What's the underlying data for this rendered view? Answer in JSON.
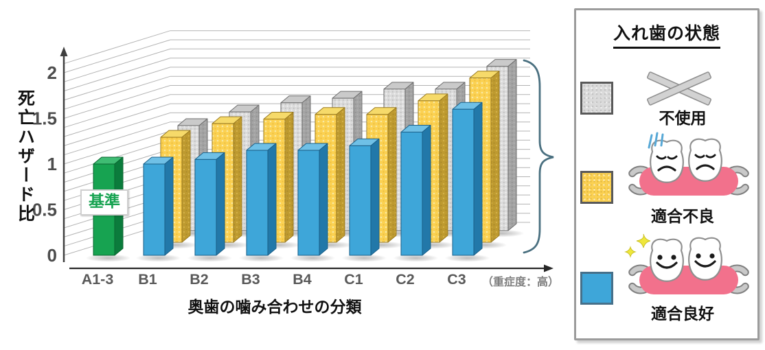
{
  "chart": {
    "y_axis": {
      "title": "死亡ハザード比",
      "tick_labels": [
        "0",
        "0.5",
        "1",
        "1.5",
        "2"
      ]
    },
    "x_axis": {
      "title": "奥歯の噛み合わせの分類",
      "severity_note": "（重症度：高）"
    },
    "reference_label": "基準"
  },
  "chart_data": {
    "type": "bar",
    "projection": "3d-oblique",
    "title": "",
    "xlabel": "奥歯の噛み合わせの分類",
    "ylabel": "死亡ハザード比",
    "ylim": [
      0,
      2.1
    ],
    "y_ticks": [
      0,
      0.5,
      1,
      1.5,
      2
    ],
    "grid": true,
    "legend_position": "right",
    "categories": [
      "A1-3",
      "B1",
      "B2",
      "B3",
      "B4",
      "C1",
      "C2",
      "C3"
    ],
    "series": [
      {
        "name": "基準（A1-3）",
        "color": "#17A351",
        "depth": 0,
        "values": [
          1.0,
          null,
          null,
          null,
          null,
          null,
          null,
          null
        ]
      },
      {
        "name": "適合良好",
        "color": "#3EA6D9",
        "depth": 0,
        "values": [
          null,
          1.0,
          1.05,
          1.15,
          1.15,
          1.2,
          1.35,
          1.6
        ]
      },
      {
        "name": "適合不良",
        "color": "#FBD152",
        "depth": 1,
        "values": [
          null,
          1.15,
          1.3,
          1.35,
          1.4,
          1.4,
          1.55,
          1.8
        ]
      },
      {
        "name": "不使用",
        "color": "#D9D9D9",
        "depth": 2,
        "values": [
          null,
          1.15,
          1.3,
          1.4,
          1.45,
          1.55,
          1.55,
          1.8
        ]
      }
    ]
  },
  "legend": {
    "title": "入れ歯の状態",
    "items": [
      {
        "label": "不使用",
        "swatch_color": "#DADADA",
        "icon": "crossed-denture"
      },
      {
        "label": "適合不良",
        "swatch_color": "#FBD152",
        "icon": "sad-denture"
      },
      {
        "label": "適合良好",
        "swatch_color": "#3EA6D9",
        "icon": "happy-denture"
      }
    ]
  }
}
